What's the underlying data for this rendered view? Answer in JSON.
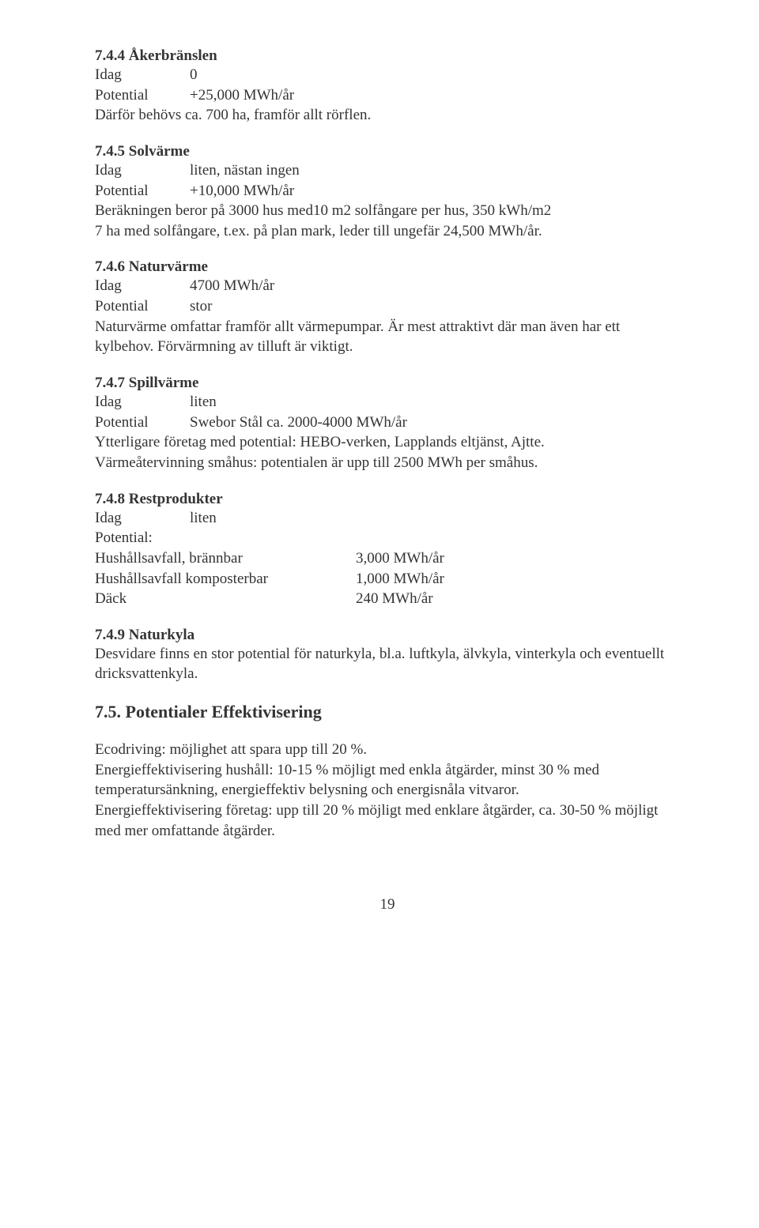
{
  "s744": {
    "title": "7.4.4 Åkerbränslen",
    "idag_label": "Idag",
    "idag_value": "0",
    "pot_label": "Potential",
    "pot_value": "+25,000 MWh/år",
    "note": "Därför behövs ca. 700 ha, framför allt rörflen."
  },
  "s745": {
    "title": "7.4.5 Solvärme",
    "idag_label": "Idag",
    "idag_value": "liten, nästan ingen",
    "pot_label": "Potential",
    "pot_value": "+10,000 MWh/år",
    "note": "Beräkningen beror på 3000 hus med10 m2 solfångare per hus, 350 kWh/m2\n7 ha med solfångare, t.ex. på plan mark, leder till ungefär 24,500 MWh/år."
  },
  "s746": {
    "title": "7.4.6 Naturvärme",
    "idag_label": "Idag",
    "idag_value": "4700 MWh/år",
    "pot_label": "Potential",
    "pot_value": "stor",
    "note": "Naturvärme omfattar framför allt värmepumpar. Är mest attraktivt där man även har ett kylbehov. Förvärmning av tilluft är viktigt."
  },
  "s747": {
    "title": "7.4.7 Spillvärme",
    "idag_label": "Idag",
    "idag_value": "liten",
    "pot_label": "Potential",
    "pot_value": "Swebor Stål ca. 2000-4000 MWh/år",
    "note": "Ytterligare företag med potential: HEBO-verken, Lapplands eltjänst, Ajtte.\nVärmeåtervinning småhus: potentialen är upp till 2500 MWh per småhus."
  },
  "s748": {
    "title": "7.4.8 Restprodukter",
    "idag_label": "Idag",
    "idag_value": "liten",
    "pot_label": "Potential:",
    "rows": [
      {
        "k": "Hushållsavfall, brännbar",
        "v": "3,000 MWh/år"
      },
      {
        "k": "Hushållsavfall komposterbar",
        "v": "1,000 MWh/år"
      },
      {
        "k": "Däck",
        "v": "240 MWh/år"
      }
    ]
  },
  "s749": {
    "title": "7.4.9 Naturkyla",
    "note": "Desvidare finns en stor potential för naturkyla, bl.a. luftkyla, älvkyla, vinterkyla och eventuellt dricksvattenkyla."
  },
  "s75": {
    "title": "7.5. Potentialer Effektivisering",
    "p1": "Ecodriving: möjlighet att spara upp till 20 %.",
    "p2": "Energieffektivisering hushåll: 10-15 % möjligt med enkla åtgärder, minst 30 % med temperatursänkning, energieffektiv belysning och energisnåla vitvaror.",
    "p3": "Energieffektivisering företag: upp till 20 % möjligt med enklare åtgärder, ca. 30-50 % möjligt med mer omfattande åtgärder."
  },
  "page_number": "19"
}
